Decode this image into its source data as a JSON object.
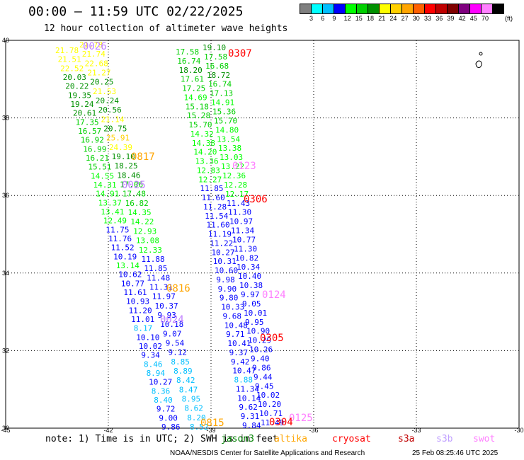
{
  "title": "00:00 — 11:59 UTC 02/22/2025",
  "subtitle": "12 hour collection of altimeter wave heights",
  "colorbar": {
    "unit": "(ft)",
    "colors": [
      "#7f7f7f",
      "#00ffff",
      "#00bfff",
      "#0000ff",
      "#00ff00",
      "#00d000",
      "#009000",
      "#ffff00",
      "#ffd000",
      "#ffa500",
      "#ff6000",
      "#ff0000",
      "#c00000",
      "#800000",
      "#800080",
      "#ff00ff",
      "#ff80ff",
      "#000000"
    ],
    "labels": [
      "3",
      "6",
      "9",
      "12",
      "15",
      "18",
      "21",
      "24",
      "27",
      "30",
      "33",
      "36",
      "39",
      "42",
      "45",
      "70"
    ]
  },
  "axes": {
    "x_ticks": [
      "-45",
      "-42",
      "-39",
      "-36",
      "-33",
      "-30"
    ],
    "y_ticks": [
      "40",
      "38",
      "36",
      "34",
      "32",
      "30"
    ]
  },
  "pass_labels": [
    {
      "text": "0026",
      "color": "#c080ff"
    },
    {
      "text": "0307",
      "color": "#ff0000"
    },
    {
      "text": "0817",
      "color": "#ffa500"
    },
    {
      "text": "0123",
      "color": "#ff80ff"
    },
    {
      "text": "0025",
      "color": "#c080ff"
    },
    {
      "text": "0306",
      "color": "#ff0000"
    },
    {
      "text": "0816",
      "color": "#ffa500"
    },
    {
      "text": "0124",
      "color": "#ff80ff"
    },
    {
      "text": "0024",
      "color": "#c080ff"
    },
    {
      "text": "0305",
      "color": "#ff0000"
    },
    {
      "text": "0815",
      "color": "#ffa500"
    },
    {
      "text": "0125",
      "color": "#ff80ff"
    },
    {
      "text": "0304",
      "color": "#ff0000"
    }
  ],
  "tracks": [
    {
      "name": "track-a",
      "values": [
        [
          "21.78",
          "#ffff00"
        ],
        [
          "21.51",
          "#ffff00"
        ],
        [
          "22.52",
          "#ffff00"
        ],
        [
          "20.03",
          "#009000"
        ],
        [
          "20.22",
          "#009000"
        ],
        [
          "19.35",
          "#009000"
        ],
        [
          "19.24",
          "#009000"
        ],
        [
          "20.61",
          "#009000"
        ],
        [
          "17.35",
          "#00d000"
        ],
        [
          "16.57",
          "#00d000"
        ],
        [
          "16.92",
          "#00d000"
        ],
        [
          "16.99",
          "#00d000"
        ],
        [
          "16.21",
          "#00d000"
        ],
        [
          "15.51",
          "#00d000"
        ],
        [
          "14.55",
          "#00ff00"
        ],
        [
          "14.31",
          "#00ff00"
        ],
        [
          "14.91",
          "#00ff00"
        ],
        [
          "13.37",
          "#00ff00"
        ],
        [
          "13.41",
          "#00ff00"
        ],
        [
          "12.49",
          "#00ff00"
        ],
        [
          "11.75",
          "#0000ff"
        ],
        [
          "11.76",
          "#0000ff"
        ],
        [
          "11.52",
          "#0000ff"
        ],
        [
          "10.19",
          "#0000ff"
        ],
        [
          "13.14",
          "#00ff00"
        ],
        [
          "10.62",
          "#0000ff"
        ],
        [
          "10.77",
          "#0000ff"
        ],
        [
          "11.61",
          "#0000ff"
        ],
        [
          "10.93",
          "#0000ff"
        ],
        [
          "11.20",
          "#0000ff"
        ],
        [
          "11.01",
          "#0000ff"
        ],
        [
          "8.17",
          "#00bfff"
        ],
        [
          "10.10",
          "#0000ff"
        ],
        [
          "10.02",
          "#0000ff"
        ],
        [
          "9.34",
          "#0000ff"
        ],
        [
          "8.46",
          "#00bfff"
        ],
        [
          "8.94",
          "#00bfff"
        ],
        [
          "10.27",
          "#0000ff"
        ],
        [
          "8.36",
          "#00bfff"
        ],
        [
          "8.40",
          "#00bfff"
        ],
        [
          "9.72",
          "#0000ff"
        ],
        [
          "9.00",
          "#0000ff"
        ],
        [
          "9.86",
          "#0000ff"
        ]
      ]
    },
    {
      "name": "track-b",
      "values": [
        [
          "21.78",
          "#ffff00"
        ],
        [
          "21.74",
          "#ffff00"
        ],
        [
          "22.68",
          "#ffff00"
        ],
        [
          "21.27",
          "#ffff00"
        ],
        [
          "20.25",
          "#009000"
        ],
        [
          "21.53",
          "#ffff00"
        ],
        [
          "20.24",
          "#009000"
        ],
        [
          "20.56",
          "#009000"
        ],
        [
          "21.14",
          "#ffff00"
        ],
        [
          "20.75",
          "#009000"
        ],
        [
          "25.91",
          "#ffd000"
        ],
        [
          "24.39",
          "#ffff00"
        ],
        [
          "19.10",
          "#009000"
        ],
        [
          "18.25",
          "#009000"
        ],
        [
          "18.46",
          "#009000"
        ],
        [
          "17.06",
          "#00d000"
        ],
        [
          "17.48",
          "#00d000"
        ],
        [
          "16.82",
          "#00d000"
        ],
        [
          "14.35",
          "#00ff00"
        ],
        [
          "14.22",
          "#00ff00"
        ],
        [
          "12.93",
          "#00ff00"
        ],
        [
          "13.08",
          "#00ff00"
        ],
        [
          "12.33",
          "#00ff00"
        ],
        [
          "11.88",
          "#0000ff"
        ],
        [
          "11.85",
          "#0000ff"
        ],
        [
          "11.48",
          "#0000ff"
        ],
        [
          "11.31",
          "#0000ff"
        ],
        [
          "11.97",
          "#0000ff"
        ],
        [
          "10.37",
          "#0000ff"
        ],
        [
          "9.93",
          "#0000ff"
        ],
        [
          "10.18",
          "#0000ff"
        ],
        [
          "9.07",
          "#0000ff"
        ],
        [
          "9.54",
          "#0000ff"
        ],
        [
          "9.12",
          "#0000ff"
        ],
        [
          "8.85",
          "#00bfff"
        ],
        [
          "8.89",
          "#00bfff"
        ],
        [
          "8.42",
          "#00bfff"
        ],
        [
          "8.47",
          "#00bfff"
        ],
        [
          "8.95",
          "#00bfff"
        ],
        [
          "8.62",
          "#00bfff"
        ],
        [
          "8.20",
          "#00bfff"
        ],
        [
          "8.52",
          "#00bfff"
        ]
      ]
    },
    {
      "name": "track-c",
      "values": [
        [
          "17.58",
          "#00d000"
        ],
        [
          "16.74",
          "#00d000"
        ],
        [
          "18.20",
          "#009000"
        ],
        [
          "17.61",
          "#00d000"
        ],
        [
          "17.25",
          "#00d000"
        ],
        [
          "14.69",
          "#00ff00"
        ],
        [
          "15.18",
          "#00d000"
        ],
        [
          "15.28",
          "#00d000"
        ],
        [
          "15.70",
          "#00d000"
        ],
        [
          "14.32",
          "#00ff00"
        ],
        [
          "14.38",
          "#00ff00"
        ],
        [
          "14.20",
          "#00ff00"
        ],
        [
          "13.36",
          "#00ff00"
        ],
        [
          "12.83",
          "#00ff00"
        ],
        [
          "12.27",
          "#00ff00"
        ],
        [
          "11.85",
          "#0000ff"
        ],
        [
          "11.60",
          "#0000ff"
        ],
        [
          "11.28",
          "#0000ff"
        ],
        [
          "11.54",
          "#0000ff"
        ],
        [
          "11.60",
          "#0000ff"
        ],
        [
          "11.19",
          "#0000ff"
        ],
        [
          "11.22",
          "#0000ff"
        ],
        [
          "10.27",
          "#0000ff"
        ],
        [
          "10.31",
          "#0000ff"
        ],
        [
          "10.60",
          "#0000ff"
        ],
        [
          "9.98",
          "#0000ff"
        ],
        [
          "9.90",
          "#0000ff"
        ],
        [
          "9.80",
          "#0000ff"
        ],
        [
          "10.33",
          "#0000ff"
        ],
        [
          "9.68",
          "#0000ff"
        ],
        [
          "10.48",
          "#0000ff"
        ],
        [
          "9.71",
          "#0000ff"
        ],
        [
          "10.41",
          "#0000ff"
        ],
        [
          "9.37",
          "#0000ff"
        ],
        [
          "9.42",
          "#0000ff"
        ],
        [
          "10.47",
          "#0000ff"
        ],
        [
          "8.88",
          "#00bfff"
        ],
        [
          "11.34",
          "#0000ff"
        ],
        [
          "10.14",
          "#0000ff"
        ],
        [
          "9.62",
          "#0000ff"
        ],
        [
          "9.31",
          "#0000ff"
        ],
        [
          "9.84",
          "#0000ff"
        ]
      ]
    },
    {
      "name": "track-d",
      "values": [
        [
          "19.10",
          "#009000"
        ],
        [
          "17.58",
          "#00d000"
        ],
        [
          "16.68",
          "#00d000"
        ],
        [
          "18.72",
          "#009000"
        ],
        [
          "16.74",
          "#00d000"
        ],
        [
          "17.13",
          "#00d000"
        ],
        [
          "14.91",
          "#00ff00"
        ],
        [
          "15.36",
          "#00d000"
        ],
        [
          "15.70",
          "#00d000"
        ],
        [
          "14.80",
          "#00ff00"
        ],
        [
          "13.54",
          "#00ff00"
        ],
        [
          "13.38",
          "#00ff00"
        ],
        [
          "13.03",
          "#00ff00"
        ],
        [
          "13.22",
          "#00ff00"
        ],
        [
          "12.36",
          "#00ff00"
        ],
        [
          "12.28",
          "#00ff00"
        ],
        [
          "12.17",
          "#00ff00"
        ],
        [
          "11.43",
          "#0000ff"
        ],
        [
          "11.30",
          "#0000ff"
        ],
        [
          "10.97",
          "#0000ff"
        ],
        [
          "11.34",
          "#0000ff"
        ],
        [
          "10.77",
          "#0000ff"
        ],
        [
          "11.30",
          "#0000ff"
        ],
        [
          "10.82",
          "#0000ff"
        ],
        [
          "10.34",
          "#0000ff"
        ],
        [
          "10.40",
          "#0000ff"
        ],
        [
          "10.38",
          "#0000ff"
        ],
        [
          "9.97",
          "#0000ff"
        ],
        [
          "9.05",
          "#0000ff"
        ],
        [
          "10.01",
          "#0000ff"
        ],
        [
          "9.95",
          "#0000ff"
        ],
        [
          "10.90",
          "#0000ff"
        ],
        [
          "10.29",
          "#0000ff"
        ],
        [
          "10.26",
          "#0000ff"
        ],
        [
          "9.40",
          "#0000ff"
        ],
        [
          "9.86",
          "#0000ff"
        ],
        [
          "9.44",
          "#0000ff"
        ],
        [
          "9.45",
          "#0000ff"
        ],
        [
          "10.02",
          "#0000ff"
        ],
        [
          "10.20",
          "#0000ff"
        ],
        [
          "10.71",
          "#0000ff"
        ],
        [
          "11.49",
          "#0000ff"
        ]
      ]
    }
  ],
  "footer": {
    "note": "note: 1) Time is in UTC; 2) SWH is in feet",
    "legend": [
      {
        "label": "jason3",
        "color": "#008000"
      },
      {
        "label": "altika",
        "color": "#ffa500"
      },
      {
        "label": "cryosat",
        "color": "#ff0000"
      },
      {
        "label": "s3a",
        "color": "#c00000"
      },
      {
        "label": "s3b",
        "color": "#c0a0ff"
      },
      {
        "label": "swot",
        "color": "#ff80ff"
      }
    ],
    "credit": "NOAA/NESDIS Center for Satellite Applications and Research",
    "timestamp": "25 Feb 08:25:46 UTC 2025"
  }
}
